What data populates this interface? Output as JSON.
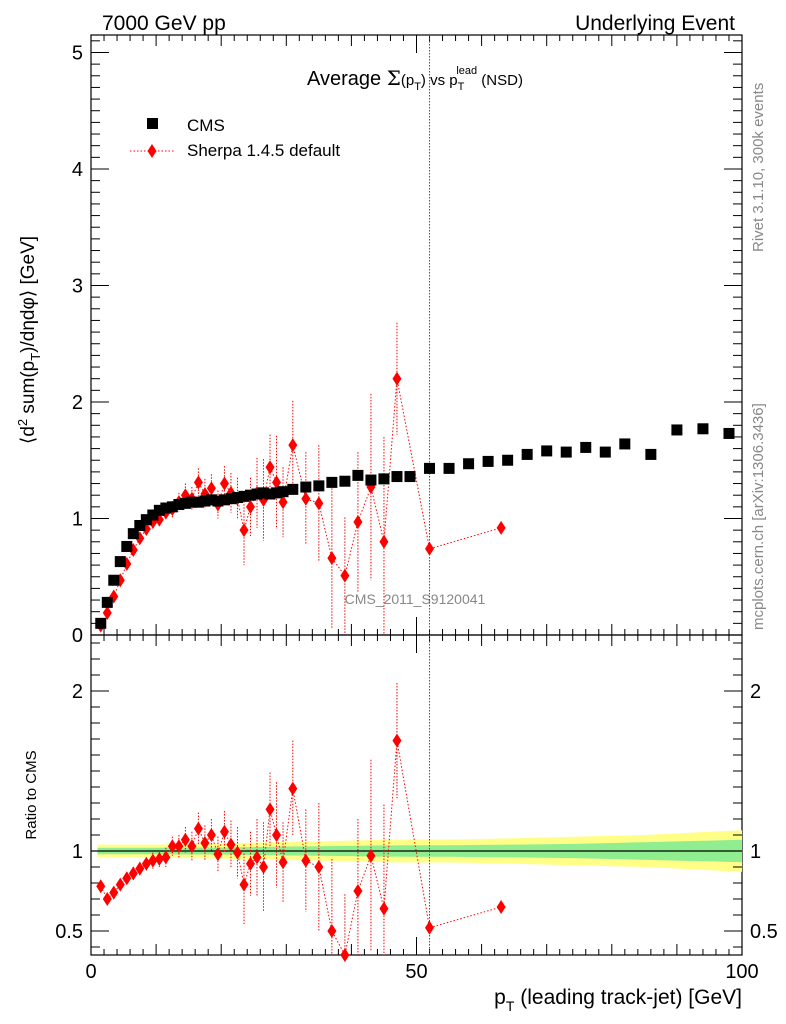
{
  "header": {
    "left": "7000 GeV pp",
    "right": "Underlying Event"
  },
  "side_labels": {
    "rivet": "Rivet 3.1.10,  300k events",
    "mcplots": "mcplots.cern.ch [arXiv:1306.3436]"
  },
  "watermark": "CMS_2011_S9120041",
  "colors": {
    "data": "#000000",
    "mc": "#ff0000",
    "band_inner": "#90ee90",
    "band_outer": "#ffff88"
  },
  "chart_data": [
    {
      "type": "scatter",
      "panel": "main",
      "title": "Average Σ(p_T) vs p_T^lead (NSD)",
      "title_parts": {
        "a": "Average ",
        "sym": "Σ",
        "b": "(p",
        "sub1": "T",
        "c": ") vs p",
        "sub2": "T",
        "sup2": "lead",
        "d": " (NSD)"
      },
      "ylabel": "⟨d² sum(p_T)/dηdφ⟩ [GeV]",
      "ylabel_parts": {
        "a": "⟨d",
        "sup": "2",
        "b": " sum(p",
        "sub": "T",
        "c": ")/dηdφ⟩ [GeV]"
      },
      "xlim": [
        0,
        100
      ],
      "ylim": [
        0,
        5.15
      ],
      "yticks": [
        "0",
        "1",
        "2",
        "3",
        "4",
        "5"
      ],
      "legend_position": "top-left",
      "series": [
        {
          "name": "CMS",
          "marker": "square",
          "x": [
            1.5,
            2.5,
            3.5,
            4.5,
            5.5,
            6.5,
            7.5,
            8.5,
            9.5,
            10.5,
            11.5,
            12.5,
            13.5,
            14.5,
            15.5,
            16.5,
            17.5,
            18.5,
            19.5,
            20.5,
            21.5,
            22.5,
            23.5,
            24.5,
            25.5,
            26.5,
            27.5,
            28.5,
            29.5,
            31,
            33,
            35,
            37,
            39,
            41,
            43,
            45,
            47,
            49,
            52,
            55,
            58,
            61,
            64,
            67,
            70,
            73,
            76,
            79,
            82,
            86,
            90,
            94,
            98
          ],
          "y": [
            0.1,
            0.28,
            0.47,
            0.63,
            0.76,
            0.87,
            0.94,
            0.99,
            1.03,
            1.07,
            1.09,
            1.1,
            1.12,
            1.13,
            1.14,
            1.14,
            1.15,
            1.16,
            1.15,
            1.16,
            1.17,
            1.18,
            1.19,
            1.2,
            1.21,
            1.22,
            1.21,
            1.22,
            1.23,
            1.25,
            1.27,
            1.28,
            1.31,
            1.32,
            1.37,
            1.33,
            1.34,
            1.36,
            1.36,
            1.43,
            1.43,
            1.47,
            1.49,
            1.5,
            1.55,
            1.58,
            1.57,
            1.61,
            1.57,
            1.64,
            1.55,
            1.76,
            1.77,
            1.73
          ]
        },
        {
          "name": "Sherpa 1.4.5 default",
          "marker": "diamond",
          "line": "dotted",
          "x": [
            1.5,
            2.5,
            3.5,
            4.5,
            5.5,
            6.5,
            7.5,
            8.5,
            9.5,
            10.5,
            11.5,
            12.5,
            13.5,
            14.5,
            15.5,
            16.5,
            17.5,
            18.5,
            19.5,
            20.5,
            21.5,
            22.5,
            23.5,
            24.5,
            25.5,
            26.5,
            27.5,
            28.5,
            29.5,
            31,
            33,
            35,
            37,
            39,
            41,
            43,
            45,
            47,
            52,
            63
          ],
          "y": [
            0.08,
            0.19,
            0.33,
            0.47,
            0.61,
            0.73,
            0.83,
            0.91,
            0.97,
            0.99,
            1.05,
            1.08,
            1.14,
            1.2,
            1.17,
            1.31,
            1.21,
            1.26,
            1.12,
            1.3,
            1.22,
            1.17,
            0.9,
            1.1,
            1.22,
            1.16,
            1.44,
            1.31,
            1.14,
            1.63,
            1.17,
            1.13,
            0.66,
            0.51,
            0.97,
            1.27,
            0.8,
            2.2,
            0.74,
            0.92
          ],
          "err": [
            0.01,
            0.02,
            0.02,
            0.03,
            0.03,
            0.04,
            0.04,
            0.04,
            0.05,
            0.05,
            0.06,
            0.07,
            0.08,
            0.1,
            0.1,
            0.12,
            0.13,
            0.12,
            0.12,
            0.15,
            0.17,
            0.18,
            0.3,
            0.25,
            0.3,
            0.35,
            0.28,
            0.4,
            0.3,
            0.38,
            0.4,
            0.5,
            0.6,
            0.5,
            0.6,
            0.8,
            0.9,
            0.48,
            5.0,
            0.0
          ]
        }
      ]
    },
    {
      "type": "scatter",
      "panel": "ratio",
      "xlabel": "p_T (leading track-jet) [GeV]",
      "xlabel_parts": {
        "a": "p",
        "sub": "T",
        "b": " (leading track-jet) [GeV]"
      },
      "ylabel": "Ratio to CMS",
      "xlim": [
        0,
        100
      ],
      "ylim": [
        0.35,
        2.35
      ],
      "xticks": [
        "0",
        "50",
        "100"
      ],
      "yticks": [
        "0.5",
        "1",
        "2"
      ],
      "band": {
        "x": [
          1,
          5,
          10,
          15,
          20,
          25,
          30,
          35,
          40,
          45,
          50,
          55,
          60,
          65,
          70,
          75,
          80,
          85,
          90,
          95,
          100
        ],
        "inner": [
          0.02,
          0.02,
          0.02,
          0.022,
          0.022,
          0.025,
          0.028,
          0.03,
          0.032,
          0.035,
          0.036,
          0.036,
          0.038,
          0.04,
          0.042,
          0.045,
          0.05,
          0.055,
          0.06,
          0.065,
          0.07
        ],
        "outer": [
          0.04,
          0.04,
          0.04,
          0.045,
          0.048,
          0.052,
          0.056,
          0.06,
          0.065,
          0.07,
          0.072,
          0.072,
          0.075,
          0.08,
          0.085,
          0.09,
          0.095,
          0.1,
          0.11,
          0.12,
          0.13
        ]
      },
      "series": [
        {
          "name": "Sherpa 1.4.5 default",
          "marker": "diamond",
          "line": "dotted",
          "x": [
            1.5,
            2.5,
            3.5,
            4.5,
            5.5,
            6.5,
            7.5,
            8.5,
            9.5,
            10.5,
            11.5,
            12.5,
            13.5,
            14.5,
            15.5,
            16.5,
            17.5,
            18.5,
            19.5,
            20.5,
            21.5,
            22.5,
            23.5,
            24.5,
            25.5,
            26.5,
            27.5,
            28.5,
            29.5,
            31,
            33,
            35,
            37,
            39,
            41,
            43,
            45,
            47,
            52,
            63
          ],
          "y": [
            0.78,
            0.7,
            0.74,
            0.79,
            0.83,
            0.86,
            0.89,
            0.92,
            0.94,
            0.95,
            0.96,
            1.03,
            1.03,
            1.07,
            1.03,
            1.14,
            1.05,
            1.1,
            0.98,
            1.12,
            1.04,
            0.99,
            0.79,
            0.92,
            0.96,
            0.9,
            1.26,
            1.1,
            0.93,
            1.39,
            0.94,
            0.9,
            0.5,
            0.35,
            0.75,
            0.97,
            0.64,
            1.69,
            0.52,
            0.65
          ],
          "err": [
            0.01,
            0.02,
            0.02,
            0.03,
            0.03,
            0.04,
            0.04,
            0.04,
            0.05,
            0.05,
            0.06,
            0.06,
            0.07,
            0.08,
            0.09,
            0.1,
            0.11,
            0.1,
            0.11,
            0.13,
            0.15,
            0.16,
            0.25,
            0.2,
            0.24,
            0.28,
            0.23,
            0.33,
            0.25,
            0.3,
            0.32,
            0.4,
            0.45,
            0.38,
            0.45,
            0.6,
            0.65,
            0.36,
            5.0,
            0.0
          ]
        }
      ]
    }
  ]
}
